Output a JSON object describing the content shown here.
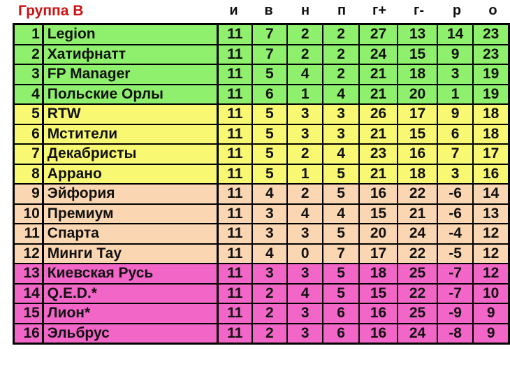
{
  "title": "Группа B",
  "columns": [
    "и",
    "в",
    "н",
    "п",
    "г+",
    "г-",
    "р",
    "о"
  ],
  "zone_colors": {
    "green": "#8ef06c",
    "yellow": "#f8f872",
    "peach": "#fbd6b2",
    "pink": "#f266c8"
  },
  "rows": [
    {
      "rank": "1",
      "team": "Legion",
      "stats": [
        "11",
        "7",
        "2",
        "2",
        "27",
        "13",
        "14",
        "23"
      ],
      "zone": "green"
    },
    {
      "rank": "2",
      "team": "Хатифнатт",
      "stats": [
        "11",
        "7",
        "2",
        "2",
        "24",
        "15",
        "9",
        "23"
      ],
      "zone": "green"
    },
    {
      "rank": "3",
      "team": "FP Manager",
      "stats": [
        "11",
        "5",
        "4",
        "2",
        "21",
        "18",
        "3",
        "19"
      ],
      "zone": "green"
    },
    {
      "rank": "4",
      "team": "Польские Орлы",
      "stats": [
        "11",
        "6",
        "1",
        "4",
        "21",
        "20",
        "1",
        "19"
      ],
      "zone": "green"
    },
    {
      "rank": "5",
      "team": "RTW",
      "stats": [
        "11",
        "5",
        "3",
        "3",
        "26",
        "17",
        "9",
        "18"
      ],
      "zone": "yellow"
    },
    {
      "rank": "6",
      "team": "Мстители",
      "stats": [
        "11",
        "5",
        "3",
        "3",
        "21",
        "15",
        "6",
        "18"
      ],
      "zone": "yellow"
    },
    {
      "rank": "7",
      "team": "Декабристы",
      "stats": [
        "11",
        "5",
        "2",
        "4",
        "23",
        "16",
        "7",
        "17"
      ],
      "zone": "yellow"
    },
    {
      "rank": "8",
      "team": "Аррано",
      "stats": [
        "11",
        "5",
        "1",
        "5",
        "21",
        "18",
        "3",
        "16"
      ],
      "zone": "yellow"
    },
    {
      "rank": "9",
      "team": "Эйфория",
      "stats": [
        "11",
        "4",
        "2",
        "5",
        "16",
        "22",
        "-6",
        "14"
      ],
      "zone": "peach"
    },
    {
      "rank": "10",
      "team": "Премиум",
      "stats": [
        "11",
        "3",
        "4",
        "4",
        "15",
        "21",
        "-6",
        "13"
      ],
      "zone": "peach"
    },
    {
      "rank": "11",
      "team": "Спарта",
      "stats": [
        "11",
        "3",
        "3",
        "5",
        "20",
        "24",
        "-4",
        "12"
      ],
      "zone": "peach"
    },
    {
      "rank": "12",
      "team": "Минги Тау",
      "stats": [
        "11",
        "4",
        "0",
        "7",
        "17",
        "22",
        "-5",
        "12"
      ],
      "zone": "peach"
    },
    {
      "rank": "13",
      "team": "Киевская Русь",
      "stats": [
        "11",
        "3",
        "3",
        "5",
        "18",
        "25",
        "-7",
        "12"
      ],
      "zone": "pink"
    },
    {
      "rank": "14",
      "team": "Q.E.D.*",
      "stats": [
        "11",
        "2",
        "4",
        "5",
        "15",
        "22",
        "-7",
        "10"
      ],
      "zone": "pink"
    },
    {
      "rank": "15",
      "team": "Лион*",
      "stats": [
        "11",
        "2",
        "3",
        "6",
        "16",
        "25",
        "-9",
        "9"
      ],
      "zone": "pink"
    },
    {
      "rank": "16",
      "team": "Эльбрус",
      "stats": [
        "11",
        "2",
        "3",
        "6",
        "16",
        "24",
        "-8",
        "9"
      ],
      "zone": "pink"
    }
  ]
}
